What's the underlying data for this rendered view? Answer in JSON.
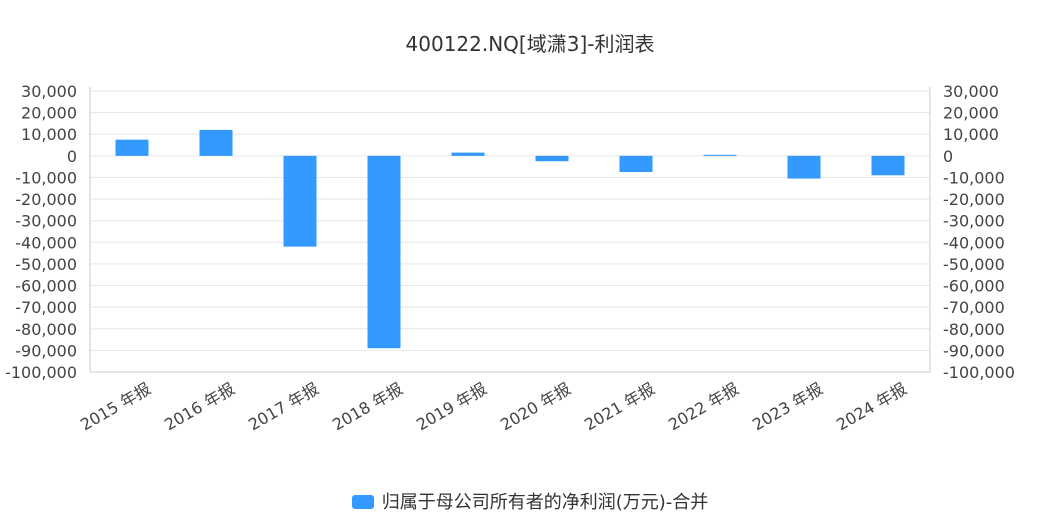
{
  "chart_data": {
    "type": "bar",
    "title": "400122.NQ[域潇3]-利润表",
    "categories": [
      "2015 年报",
      "2016 年报",
      "2017 年报",
      "2018 年报",
      "2019 年报",
      "2020 年报",
      "2021 年报",
      "2022 年报",
      "2023 年报",
      "2024 年报"
    ],
    "series": [
      {
        "name": "归属于母公司所有者的净利润(万元)-合并",
        "color": "#3399ff",
        "values": [
          7500,
          12000,
          -42000,
          -89000,
          1500,
          -2500,
          -7500,
          500,
          -10500,
          -9000
        ]
      }
    ],
    "ylim": [
      -100000,
      30000
    ],
    "y_ticks": [
      "30,000",
      "20,000",
      "10,000",
      "0",
      "-10,000",
      "-20,000",
      "-30,000",
      "-40,000",
      "-50,000",
      "-60,000",
      "-70,000",
      "-80,000",
      "-90,000",
      "-100,000"
    ],
    "y_tick_values": [
      30000,
      20000,
      10000,
      0,
      -10000,
      -20000,
      -30000,
      -40000,
      -50000,
      -60000,
      -70000,
      -80000,
      -90000,
      -100000
    ],
    "grid": true,
    "legend_position": "bottom-center",
    "dual_y_axis": true
  }
}
